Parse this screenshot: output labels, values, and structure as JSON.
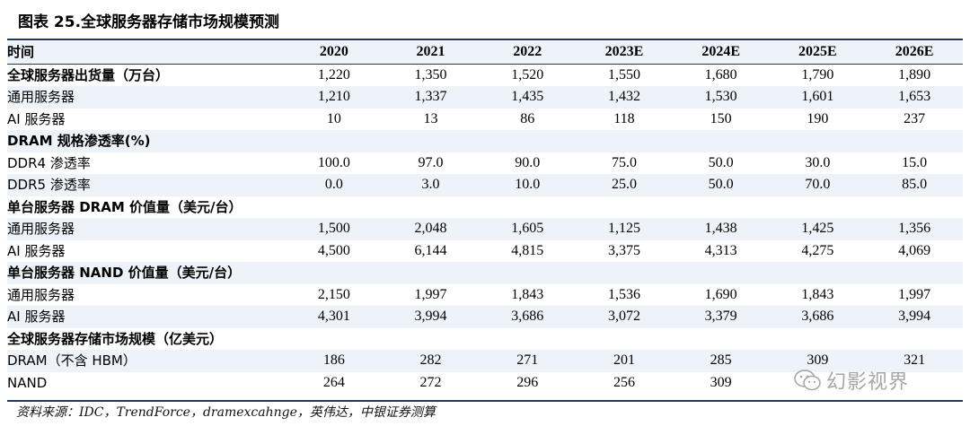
{
  "title": "图表 25.全球服务器存储市场规模预测",
  "header": {
    "label": "时间",
    "years": [
      "2020",
      "2021",
      "2022",
      "2023E",
      "2024E",
      "2025E",
      "2026E"
    ]
  },
  "rows": [
    {
      "label": "全球服务器出货量（万台）",
      "type": "section",
      "values": [
        "1,220",
        "1,350",
        "1,520",
        "1,550",
        "1,680",
        "1,790",
        "1,890"
      ]
    },
    {
      "label": "通用服务器",
      "type": "sub",
      "values": [
        "1,210",
        "1,337",
        "1,435",
        "1,432",
        "1,530",
        "1,601",
        "1,653"
      ]
    },
    {
      "label": "AI 服务器",
      "type": "sub",
      "values": [
        "10",
        "13",
        "86",
        "118",
        "150",
        "190",
        "237"
      ]
    },
    {
      "label": "DRAM 规格渗透率(%)",
      "type": "section",
      "values": [
        "",
        "",
        "",
        "",
        "",
        "",
        ""
      ]
    },
    {
      "label": "DDR4 渗透率",
      "type": "sub",
      "values": [
        "100.0",
        "97.0",
        "90.0",
        "75.0",
        "50.0",
        "30.0",
        "15.0"
      ]
    },
    {
      "label": "DDR5 渗透率",
      "type": "sub",
      "values": [
        "0.0",
        "3.0",
        "10.0",
        "25.0",
        "50.0",
        "70.0",
        "85.0"
      ]
    },
    {
      "label": "单台服务器 DRAM 价值量（美元/台）",
      "type": "section",
      "values": [
        "",
        "",
        "",
        "",
        "",
        "",
        ""
      ]
    },
    {
      "label": "通用服务器",
      "type": "sub",
      "values": [
        "1,500",
        "2,048",
        "1,605",
        "1,125",
        "1,438",
        "1,425",
        "1,356"
      ]
    },
    {
      "label": "AI 服务器",
      "type": "sub",
      "values": [
        "4,500",
        "6,144",
        "4,815",
        "3,375",
        "4,313",
        "4,275",
        "4,069"
      ]
    },
    {
      "label": "单台服务器 NAND 价值量（美元/台）",
      "type": "section",
      "values": [
        "",
        "",
        "",
        "",
        "",
        "",
        ""
      ]
    },
    {
      "label": "通用服务器",
      "type": "sub",
      "values": [
        "2,150",
        "1,997",
        "1,843",
        "1,536",
        "1,690",
        "1,843",
        "1,997"
      ]
    },
    {
      "label": "AI 服务器",
      "type": "sub",
      "values": [
        "4,301",
        "3,994",
        "3,686",
        "3,072",
        "3,379",
        "3,686",
        "3,994"
      ]
    },
    {
      "label": "全球服务器存储市场规模（亿美元）",
      "type": "section",
      "values": [
        "",
        "",
        "",
        "",
        "",
        "",
        ""
      ]
    },
    {
      "label": "DRAM（不含 HBM）",
      "type": "sub",
      "values": [
        "186",
        "282",
        "271",
        "201",
        "285",
        "309",
        "321"
      ]
    },
    {
      "label": "NAND",
      "type": "sub",
      "values": [
        "264",
        "272",
        "296",
        "256",
        "309",
        "",
        ""
      ]
    }
  ],
  "source": "资料来源：IDC，TrendForce，dramexcahnge，英伟达，中银证券测算",
  "watermark": {
    "text": "幻影视界",
    "icon": "wechat-icon",
    "color": "#8a8a8a"
  },
  "colors": {
    "rule": "#1f3864",
    "shade": "#eef3fa"
  }
}
